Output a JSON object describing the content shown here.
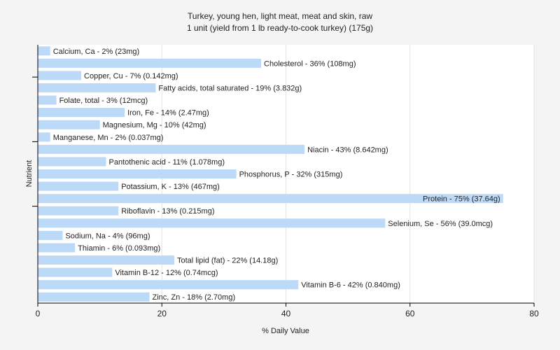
{
  "chart_data": {
    "type": "bar",
    "orientation": "horizontal",
    "title": "Turkey, young hen, light meat, meat and skin, raw",
    "subtitle": "1 unit (yield from 1 lb ready-to-cook turkey) (175g)",
    "xlabel": "% Daily Value",
    "ylabel": "Nutrient",
    "xlim": [
      0,
      80
    ],
    "xticks": [
      0,
      20,
      40,
      60,
      80
    ],
    "grid": true,
    "categories": [
      "Calcium, Ca",
      "Cholesterol",
      "Copper, Cu",
      "Fatty acids, total saturated",
      "Folate, total",
      "Iron, Fe",
      "Magnesium, Mg",
      "Manganese, Mn",
      "Niacin",
      "Pantothenic acid",
      "Phosphorus, P",
      "Potassium, K",
      "Protein",
      "Riboflavin",
      "Selenium, Se",
      "Sodium, Na",
      "Thiamin",
      "Total lipid (fat)",
      "Vitamin B-12",
      "Vitamin B-6",
      "Zinc, Zn"
    ],
    "values": [
      2,
      36,
      7,
      19,
      3,
      14,
      10,
      2,
      43,
      11,
      32,
      13,
      75,
      13,
      56,
      4,
      6,
      22,
      12,
      42,
      18
    ],
    "labels": [
      "Calcium, Ca - 2% (23mg)",
      "Cholesterol - 36% (108mg)",
      "Copper, Cu - 7% (0.142mg)",
      "Fatty acids, total saturated - 19% (3.832g)",
      "Folate, total - 3% (12mcg)",
      "Iron, Fe - 14% (2.47mg)",
      "Magnesium, Mg - 10% (42mg)",
      "Manganese, Mn - 2% (0.037mg)",
      "Niacin - 43% (8.642mg)",
      "Pantothenic acid - 11% (1.078mg)",
      "Phosphorus, P - 32% (315mg)",
      "Potassium, K - 13% (467mg)",
      "Protein - 75% (37.64g)",
      "Riboflavin - 13% (0.215mg)",
      "Selenium, Se - 56% (39.0mcg)",
      "Sodium, Na - 4% (96mg)",
      "Thiamin - 6% (0.093mg)",
      "Total lipid (fat) - 22% (14.18g)",
      "Vitamin B-12 - 12% (0.74mcg)",
      "Vitamin B-6 - 42% (0.840mg)",
      "Zinc, Zn - 18% (2.70mg)"
    ],
    "colors": {
      "bar": "#bcd9f7",
      "background": "#f4f4f4",
      "plot_background": "#ffffff",
      "grid": "#e4e4e4",
      "axis": "#000000"
    }
  }
}
